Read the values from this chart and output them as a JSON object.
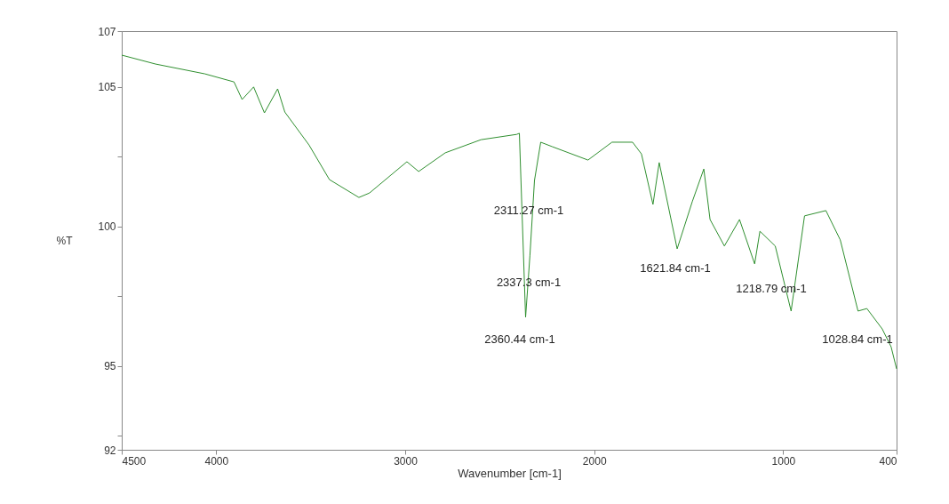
{
  "chart_data": {
    "type": "line",
    "xlabel": "Wavenumber [cm-1]",
    "ylabel": "%T",
    "xlim": [
      4500,
      400
    ],
    "xticks": [
      4500,
      4000,
      3000,
      2000,
      1000,
      400
    ],
    "ylim": [
      92,
      107
    ],
    "yticks": [
      92,
      {
        "value": 92.5,
        "label": null
      },
      95,
      {
        "value": 97.5,
        "label": null
      },
      100,
      {
        "value": 102.5,
        "label": null
      },
      105,
      107
    ],
    "grid": false,
    "series": [
      {
        "color": "#2f8f2f",
        "x": [
          4500,
          4321,
          4061,
          3906,
          3863,
          3802,
          3745,
          3675,
          3637,
          3509,
          3401,
          3245,
          3189,
          2991,
          2929,
          2788,
          2599,
          2410,
          2396,
          2363,
          2340,
          2316,
          2283,
          2222,
          2033,
          1906,
          1797,
          1750,
          1689,
          1656,
          1561,
          1481,
          1420,
          1387,
          1311,
          1231,
          1151,
          1123,
          1042,
          958,
          887,
          774,
          698,
          604,
          557,
          476,
          429,
          400
        ],
        "values": [
          106.14,
          105.82,
          105.47,
          105.18,
          104.55,
          105.0,
          104.07,
          104.93,
          104.1,
          102.92,
          101.68,
          101.04,
          101.2,
          102.32,
          101.97,
          102.64,
          103.11,
          103.3,
          103.34,
          96.75,
          98.97,
          101.65,
          103.02,
          102.86,
          102.38,
          103.02,
          103.02,
          102.6,
          100.79,
          102.29,
          99.2,
          100.89,
          102.06,
          100.25,
          99.3,
          100.25,
          98.66,
          99.83,
          99.3,
          96.97,
          100.38,
          100.57,
          99.52,
          96.97,
          97.06,
          96.33,
          95.69,
          94.9
        ]
      }
    ],
    "annotations": [
      "2311.27 cm-1",
      "2337.3 cm-1",
      "2360.44 cm-1",
      "1621.84 cm-1",
      "1218.79 cm-1",
      "1028.84 cm-1"
    ]
  }
}
